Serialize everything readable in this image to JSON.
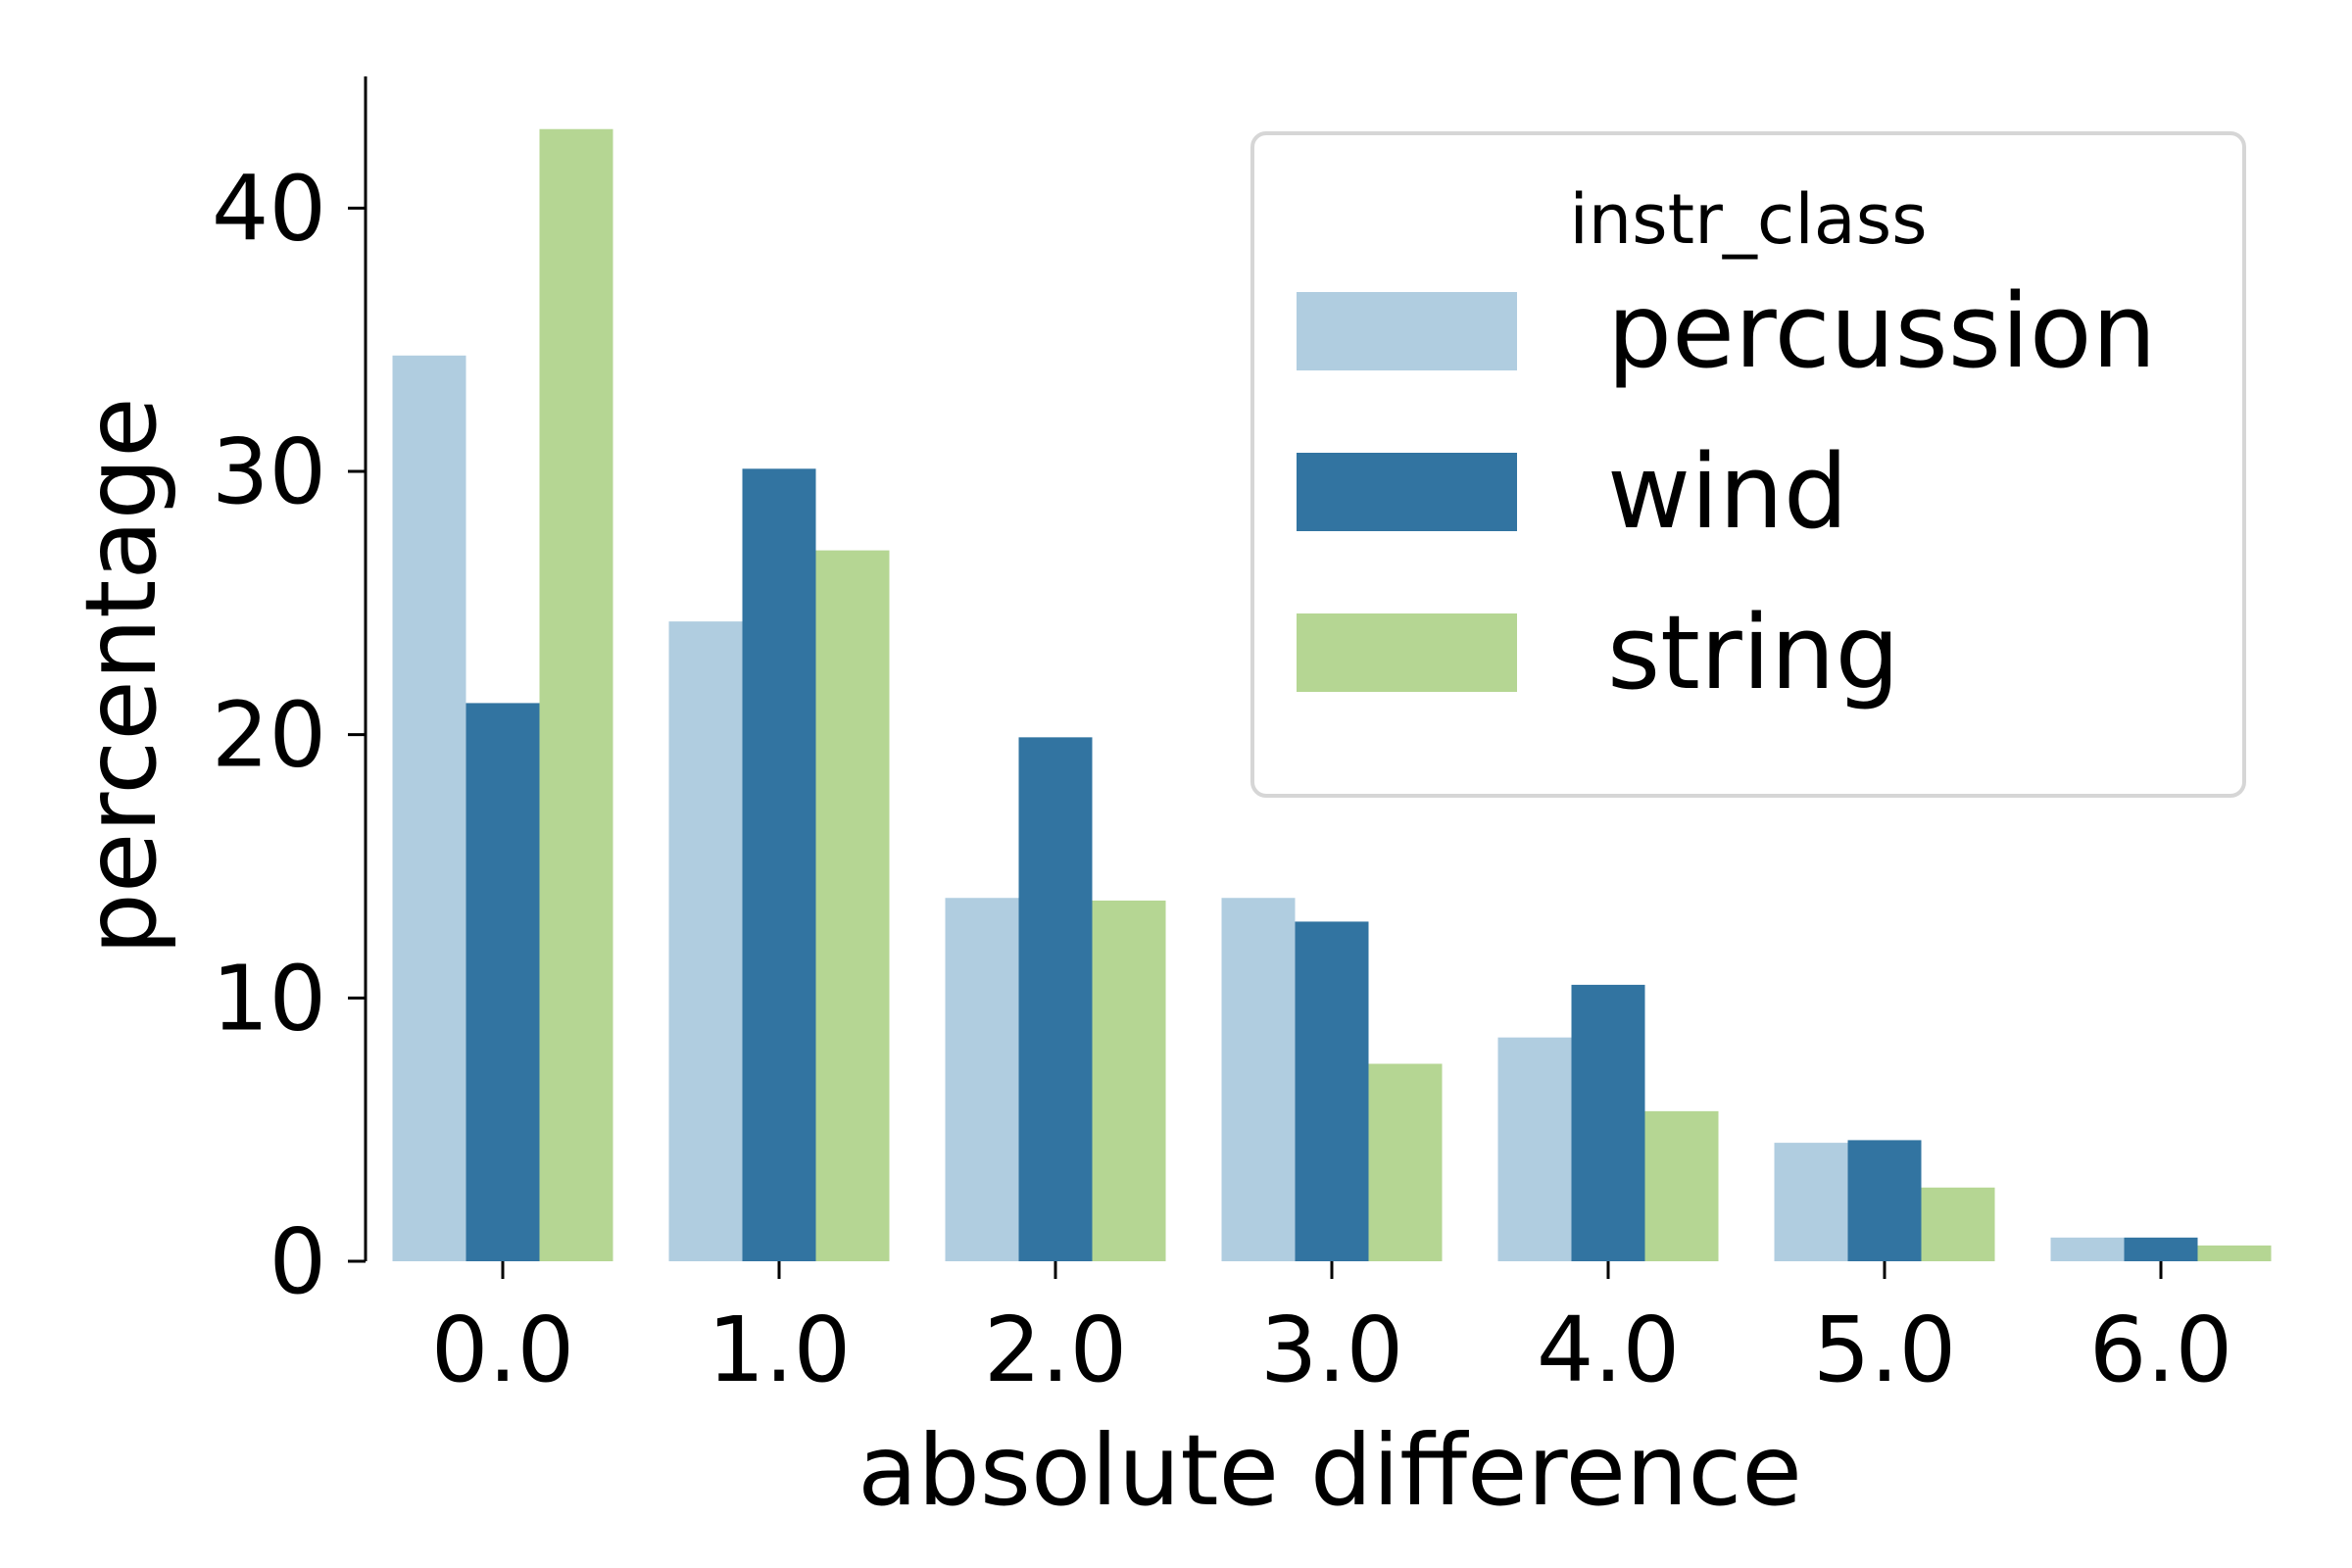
{
  "chart_data": {
    "type": "bar",
    "title": "",
    "xlabel": "absolute difference",
    "ylabel": "percentage",
    "categories": [
      "0.0",
      "1.0",
      "2.0",
      "3.0",
      "4.0",
      "5.0",
      "6.0"
    ],
    "ylim": [
      0,
      45
    ],
    "yticks": [
      0,
      10,
      20,
      30,
      40
    ],
    "grid": false,
    "legend": {
      "title": "instr_class",
      "position": "top-right"
    },
    "series": [
      {
        "name": "percussion",
        "color": "#b0cde0",
        "values": [
          34.4,
          24.3,
          13.8,
          13.8,
          8.5,
          4.5,
          0.9
        ]
      },
      {
        "name": "wind",
        "color": "#3274a1",
        "values": [
          21.2,
          30.1,
          19.9,
          12.9,
          10.5,
          4.6,
          0.9
        ]
      },
      {
        "name": "string",
        "color": "#b5d693",
        "values": [
          43.0,
          27.0,
          13.7,
          7.5,
          5.7,
          2.8,
          0.6
        ]
      }
    ]
  }
}
